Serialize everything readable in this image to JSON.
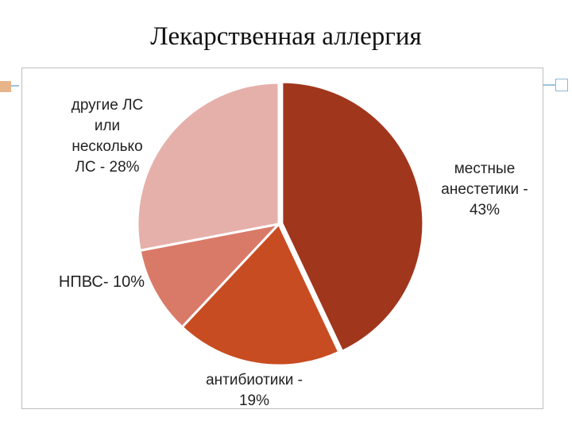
{
  "title": "Лекарственная аллергия",
  "chart_data": {
    "type": "pie",
    "slices": [
      {
        "label_lines": [
          "местные",
          "анестетики -",
          "43%"
        ],
        "category": "местные анестетики",
        "value": 43,
        "color": "#a0361c"
      },
      {
        "label_lines": [
          "антибиотики -",
          "19%"
        ],
        "category": "антибиотики",
        "value": 19,
        "color": "#c84c22"
      },
      {
        "label_lines": [
          "НПВС- 10%"
        ],
        "category": "НПВС",
        "value": 10,
        "color": "#d97a68"
      },
      {
        "label_lines": [
          "другие ЛС",
          "или",
          "несколько",
          "ЛС - 28%"
        ],
        "category": "другие ЛС или несколько ЛС",
        "value": 28,
        "color": "#e6b0aa"
      }
    ]
  }
}
